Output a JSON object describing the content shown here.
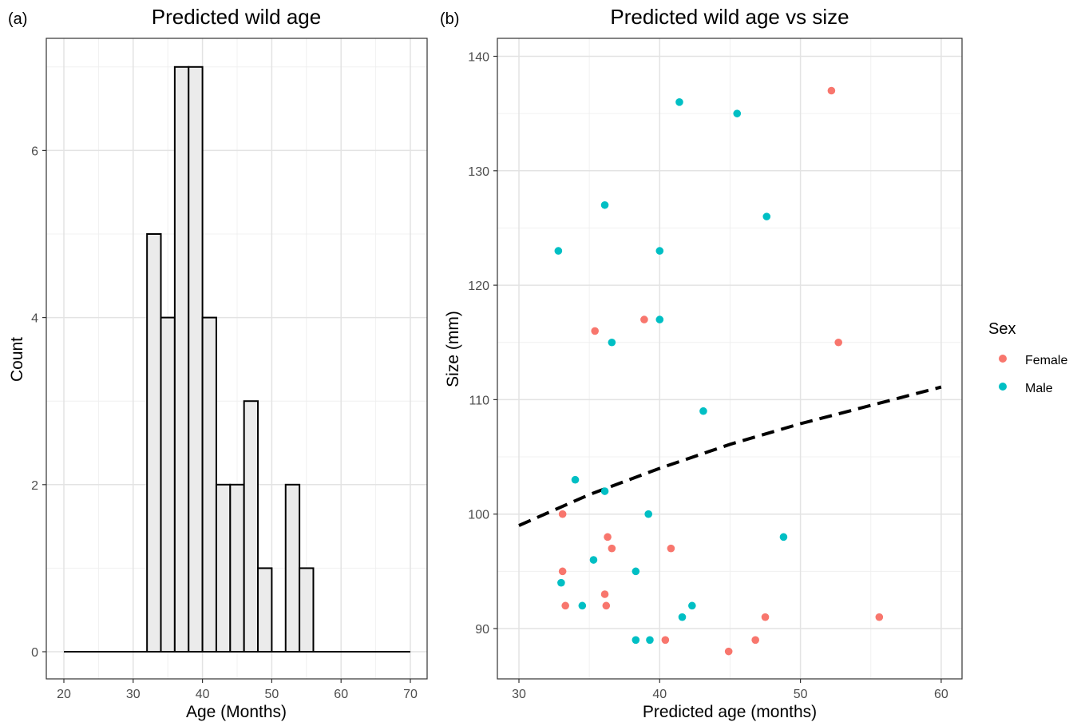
{
  "panel_a": {
    "tag": "(a)",
    "title": "Predicted wild age",
    "xlabel": "Age (Months)",
    "ylabel": "Count",
    "chart_data": {
      "type": "bar",
      "title": "Predicted wild age",
      "xlabel": "Age (Months)",
      "ylabel": "Count",
      "bin_width": 2,
      "xlim": [
        20,
        70
      ],
      "ylim": [
        0,
        7
      ],
      "x_ticks": [
        20,
        30,
        40,
        50,
        60,
        70
      ],
      "y_ticks": [
        0,
        2,
        4,
        6
      ],
      "bins": [
        {
          "start": 20,
          "count": 0
        },
        {
          "start": 22,
          "count": 0
        },
        {
          "start": 24,
          "count": 0
        },
        {
          "start": 26,
          "count": 0
        },
        {
          "start": 28,
          "count": 0
        },
        {
          "start": 30,
          "count": 0
        },
        {
          "start": 32,
          "count": 5
        },
        {
          "start": 34,
          "count": 4
        },
        {
          "start": 36,
          "count": 7
        },
        {
          "start": 38,
          "count": 7
        },
        {
          "start": 40,
          "count": 4
        },
        {
          "start": 42,
          "count": 2
        },
        {
          "start": 44,
          "count": 2
        },
        {
          "start": 46,
          "count": 3
        },
        {
          "start": 48,
          "count": 1
        },
        {
          "start": 50,
          "count": 0
        },
        {
          "start": 52,
          "count": 2
        },
        {
          "start": 54,
          "count": 1
        },
        {
          "start": 56,
          "count": 0
        },
        {
          "start": 58,
          "count": 0
        },
        {
          "start": 60,
          "count": 0
        },
        {
          "start": 62,
          "count": 0
        },
        {
          "start": 64,
          "count": 0
        },
        {
          "start": 66,
          "count": 0
        },
        {
          "start": 68,
          "count": 0
        }
      ],
      "bar_fill": "#ebebeb",
      "bar_outline": "#000000",
      "grid": true
    }
  },
  "panel_b": {
    "tag": "(b)",
    "title": "Predicted wild age vs size",
    "xlabel": "Predicted age (months)",
    "ylabel": "Size (mm)",
    "legend": {
      "title": "Sex",
      "position": "right",
      "entries": [
        {
          "label": "Female",
          "color": "#F8766D"
        },
        {
          "label": "Male",
          "color": "#00BFC4"
        }
      ]
    },
    "chart_data": {
      "type": "scatter",
      "title": "Predicted wild age vs size",
      "xlabel": "Predicted age (months)",
      "ylabel": "Size (mm)",
      "xlim": [
        28.5,
        61.7
      ],
      "ylim": [
        85.9,
        140.8
      ],
      "x_ticks": [
        30,
        40,
        50,
        60
      ],
      "y_ticks": [
        90,
        100,
        110,
        120,
        130,
        140
      ],
      "grid": true,
      "series": [
        {
          "name": "Female",
          "color": "#F8766D",
          "points": [
            [
              52.2,
              137
            ],
            [
              38.9,
              117
            ],
            [
              35.4,
              116
            ],
            [
              52.7,
              115
            ],
            [
              33.1,
              100
            ],
            [
              36.3,
              98
            ],
            [
              36.6,
              97
            ],
            [
              40.8,
              97
            ],
            [
              33.1,
              95
            ],
            [
              36.1,
              93
            ],
            [
              33.3,
              92
            ],
            [
              36.2,
              92
            ],
            [
              47.5,
              91
            ],
            [
              55.6,
              91
            ],
            [
              40.4,
              89
            ],
            [
              46.8,
              89
            ],
            [
              44.9,
              88
            ]
          ]
        },
        {
          "name": "Male",
          "color": "#00BFC4",
          "points": [
            [
              41.4,
              136
            ],
            [
              45.5,
              135
            ],
            [
              36.1,
              127
            ],
            [
              47.6,
              126
            ],
            [
              32.8,
              123
            ],
            [
              40.0,
              123
            ],
            [
              40.0,
              117
            ],
            [
              36.6,
              115
            ],
            [
              43.1,
              109
            ],
            [
              34.0,
              103
            ],
            [
              36.1,
              102
            ],
            [
              39.2,
              100
            ],
            [
              48.8,
              98
            ],
            [
              35.3,
              96
            ],
            [
              38.3,
              95
            ],
            [
              33.0,
              94
            ],
            [
              34.5,
              92
            ],
            [
              42.3,
              92
            ],
            [
              41.6,
              91
            ],
            [
              38.3,
              89
            ],
            [
              39.3,
              89
            ]
          ]
        }
      ],
      "trend_line": {
        "style": "dashed",
        "color": "#000000",
        "points": [
          [
            30,
            99.0
          ],
          [
            35,
            101.7
          ],
          [
            40,
            104.0
          ],
          [
            45,
            106.1
          ],
          [
            50,
            107.9
          ],
          [
            55,
            109.5
          ],
          [
            60,
            111.1
          ]
        ]
      }
    }
  }
}
